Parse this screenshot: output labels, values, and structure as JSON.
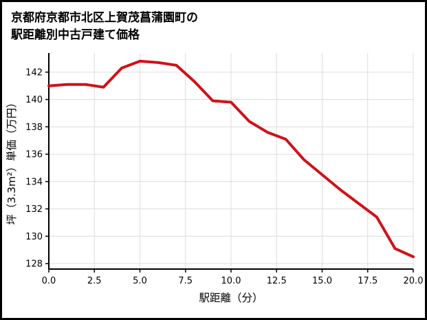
{
  "title": {
    "line1": "京都府京都市北区上賀茂菖蒲園町の",
    "line2": "駅距離別中古戸建て価格"
  },
  "chart_data": {
    "type": "line",
    "title": "京都府京都市北区上賀茂菖蒲園町の駅距離別中古戸建て価格",
    "xlabel": "駅距離（分）",
    "ylabel": "坪（3.3m²）単価（万円）",
    "x": [
      0,
      1,
      2,
      3,
      4,
      5,
      6,
      7,
      8,
      9,
      10,
      11,
      12,
      13,
      14,
      15,
      16,
      17,
      18,
      19,
      20
    ],
    "values": [
      141.0,
      141.1,
      141.1,
      140.9,
      142.3,
      142.8,
      142.7,
      142.5,
      141.3,
      139.9,
      139.8,
      138.4,
      137.6,
      137.1,
      135.6,
      134.5,
      133.4,
      132.4,
      131.4,
      129.1,
      128.5
    ],
    "xlim": [
      0,
      20
    ],
    "ylim": [
      127.6,
      143.4
    ],
    "x_ticks": [
      0,
      2.5,
      5,
      7.5,
      10,
      12.5,
      15,
      17.5,
      20
    ],
    "x_tick_labels": [
      "0.0",
      "2.5",
      "5.0",
      "7.5",
      "10.0",
      "12.5",
      "15.0",
      "17.5",
      "20.0"
    ],
    "y_ticks": [
      128,
      130,
      132,
      134,
      136,
      138,
      140,
      142
    ],
    "y_tick_labels": [
      "128",
      "130",
      "132",
      "134",
      "136",
      "138",
      "140",
      "142"
    ],
    "line_color": "#d01118",
    "grid": true,
    "grid_color": "#dcdcdc",
    "axis_color": "#000000",
    "background": "#ffffff",
    "legend_position": "none"
  }
}
